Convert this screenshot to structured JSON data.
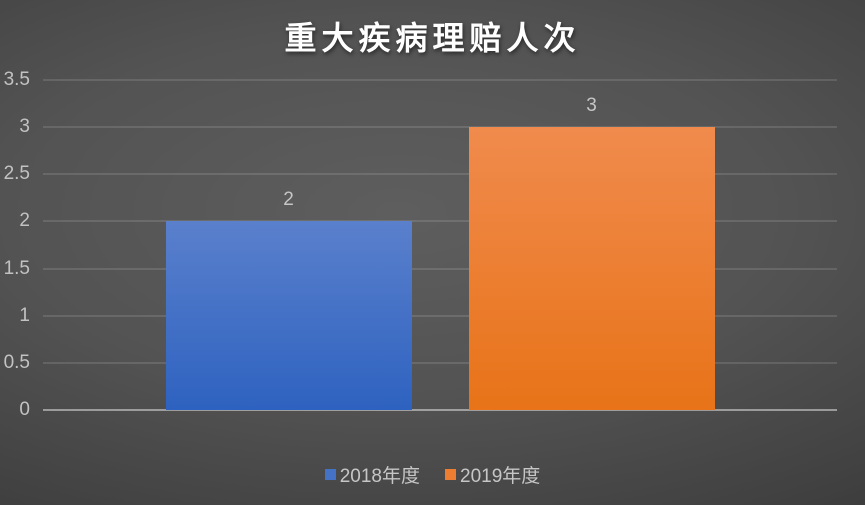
{
  "chart_data": {
    "type": "bar",
    "title": "重大疾病理赔人次",
    "categories": [
      ""
    ],
    "series": [
      {
        "name": "2018年度",
        "values": [
          2
        ],
        "data_label": "2",
        "color": "#4472C4",
        "gradient_top": "#5A80CC",
        "gradient_bottom": "#2E62C0"
      },
      {
        "name": "2019年度",
        "values": [
          3
        ],
        "data_label": "3",
        "color": "#ED7D31",
        "gradient_top": "#F08B4D",
        "gradient_bottom": "#E87318"
      }
    ],
    "xlabel": "",
    "ylabel": "",
    "ylim": [
      0,
      3.5
    ],
    "ytick_step": 0.5,
    "ytick_labels": [
      "0",
      "0.5",
      "1",
      "1.5",
      "2",
      "2.5",
      "3",
      "3.5"
    ],
    "grid": true,
    "legend_position": "bottom",
    "colors": {
      "title": "#FFFFFF",
      "axis_text": "#C2C2C2",
      "data_label_text": "#C6C6C6",
      "gridline": "rgba(255,255,255,0.12)",
      "baseline": "rgba(255,255,255,0.45)"
    }
  }
}
